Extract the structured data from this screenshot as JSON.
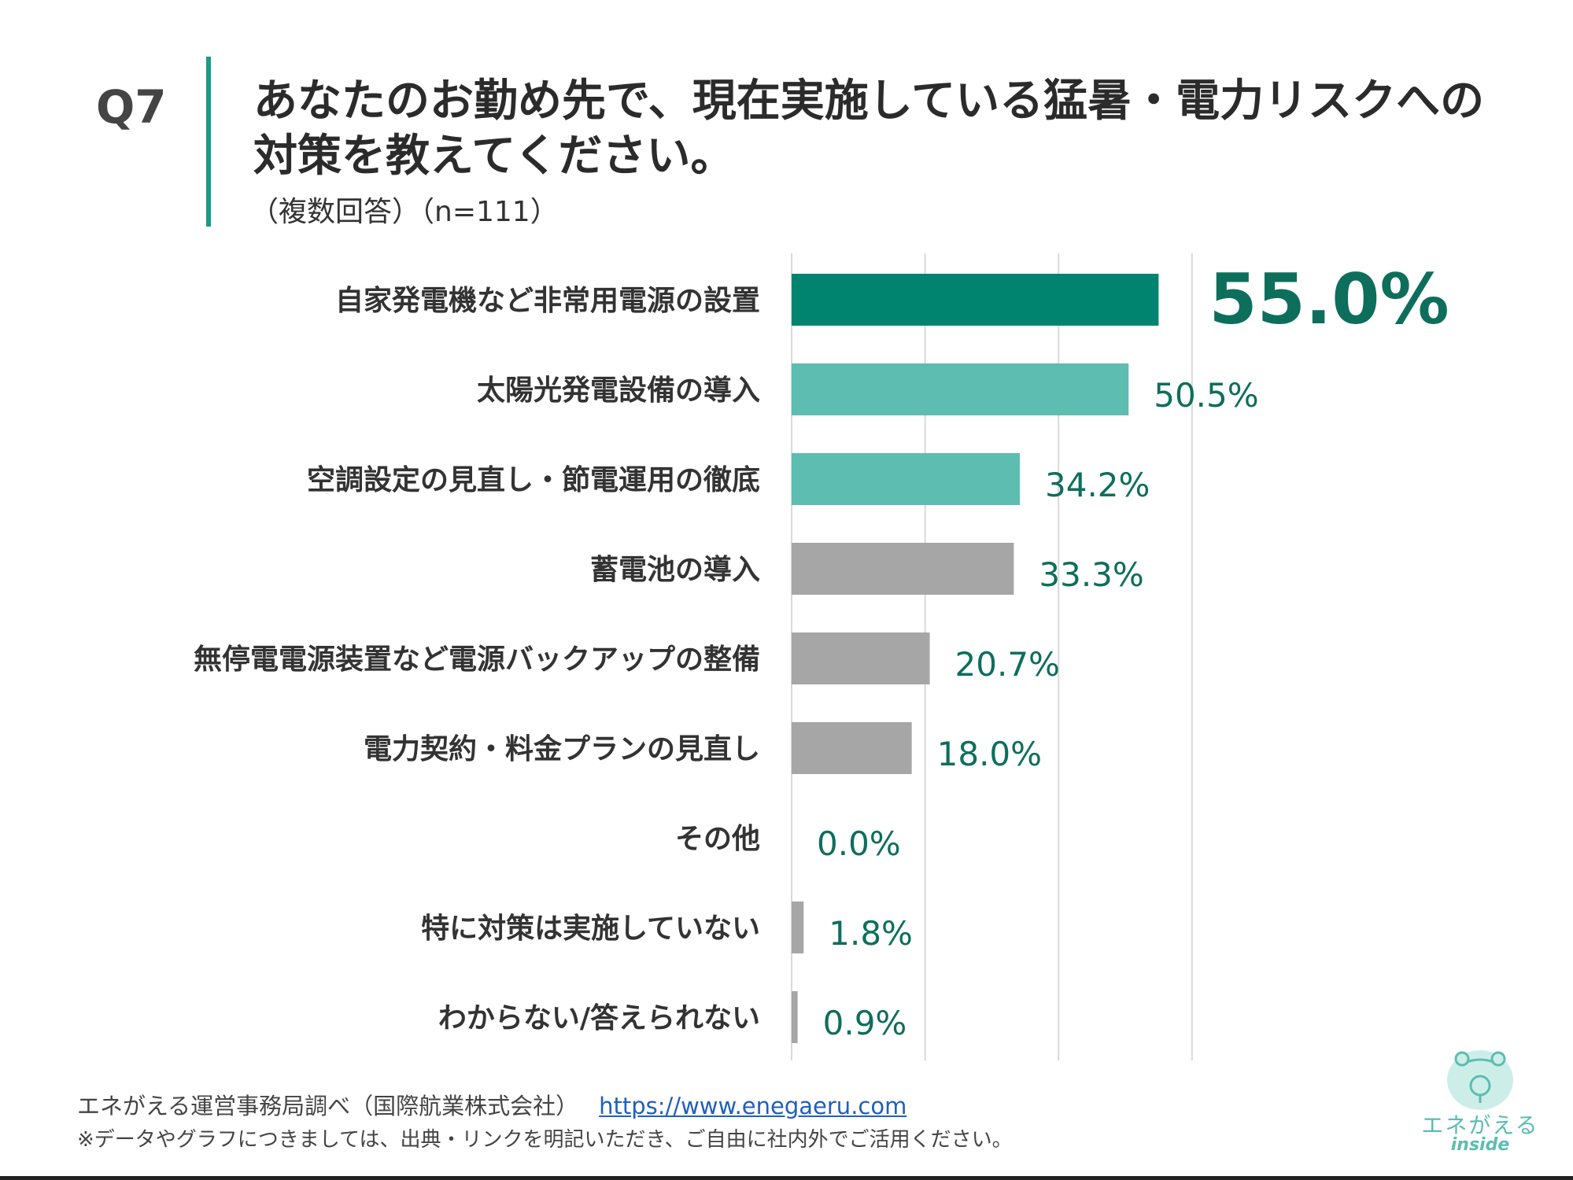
{
  "header": {
    "q_label": "Q7",
    "title": "あなたのお勤め先で、現在実施している猛暑・電力リスクへの対策を教えてください。",
    "subtitle": "（複数回答）（n=111）"
  },
  "chart_data": {
    "type": "bar",
    "orientation": "horizontal",
    "categories": [
      "自家発電機など非常用電源の設置",
      "太陽光発電設備の導入",
      "空調設定の見直し・節電運用の徹底",
      "蓄電池の導入",
      "無停電電源装置など電源バックアップの整備",
      "電力契約・料金プランの見直し",
      "その他",
      "特に対策は実施していない",
      "わからない/答えられない"
    ],
    "values": [
      55.0,
      50.5,
      34.2,
      33.3,
      20.7,
      18.0,
      0.0,
      1.8,
      0.9
    ],
    "labels": [
      "55.0%",
      "50.5%",
      "34.2%",
      "33.3%",
      "20.7%",
      "18.0%",
      "0.0%",
      "1.8%",
      "0.9%"
    ],
    "bar_colors": [
      "#00846f",
      "#5cbdb0",
      "#5cbdb0",
      "#a6a6a6",
      "#a6a6a6",
      "#a6a6a6",
      "#a6a6a6",
      "#a6a6a6",
      "#a6a6a6"
    ],
    "xlim": [
      0,
      60
    ],
    "grid": true
  },
  "footer": {
    "source": "エネがえる運営事務局調べ（国際航業株式会社）",
    "link": "https://www.enegaeru.com",
    "note": "※データやグラフにつきましては、出典・リンクを明記いただき、ご自由に社内外でご活用ください。"
  },
  "logo": {
    "name": "エネがえる",
    "sub": "inside",
    "color": "#5cbdb0"
  },
  "colors": {
    "accent": "#1a9a85",
    "value_text": "#0e6e5c"
  }
}
